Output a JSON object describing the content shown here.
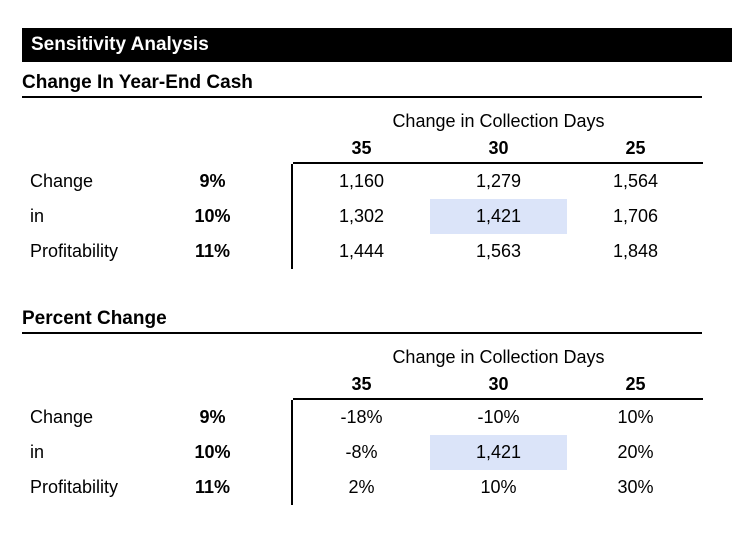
{
  "title_bar": {
    "label": "Sensitivity Analysis"
  },
  "colors": {
    "highlight": "#dbe4f9",
    "title_bar_bg": "#000000",
    "title_bar_text": "#ffffff"
  },
  "sections": [
    {
      "heading": "Change In Year-End Cash",
      "col_group_label": "Change in Collection Days",
      "col_headers": [
        "35",
        "30",
        "25"
      ],
      "row_labels": [
        "Change",
        "in",
        "Profitability"
      ],
      "pct_values": [
        "9%",
        "10%",
        "11%"
      ],
      "rows": [
        [
          "1,160",
          "1,279",
          "1,564"
        ],
        [
          "1,302",
          "1,421",
          "1,706"
        ],
        [
          "1,444",
          "1,563",
          "1,848"
        ]
      ],
      "highlighted_cell": {
        "row": 1,
        "col": 1,
        "value": "1,421"
      }
    },
    {
      "heading": "Percent Change",
      "col_group_label": "Change in Collection Days",
      "col_headers": [
        "35",
        "30",
        "25"
      ],
      "row_labels": [
        "Change",
        "in",
        "Profitability"
      ],
      "pct_values": [
        "9%",
        "10%",
        "11%"
      ],
      "rows": [
        [
          "-18%",
          "-10%",
          "10%"
        ],
        [
          "-8%",
          "1,421",
          "20%"
        ],
        [
          "2%",
          "10%",
          "30%"
        ]
      ],
      "highlighted_cell": {
        "row": 1,
        "col": 1,
        "value": "1,421"
      }
    }
  ]
}
